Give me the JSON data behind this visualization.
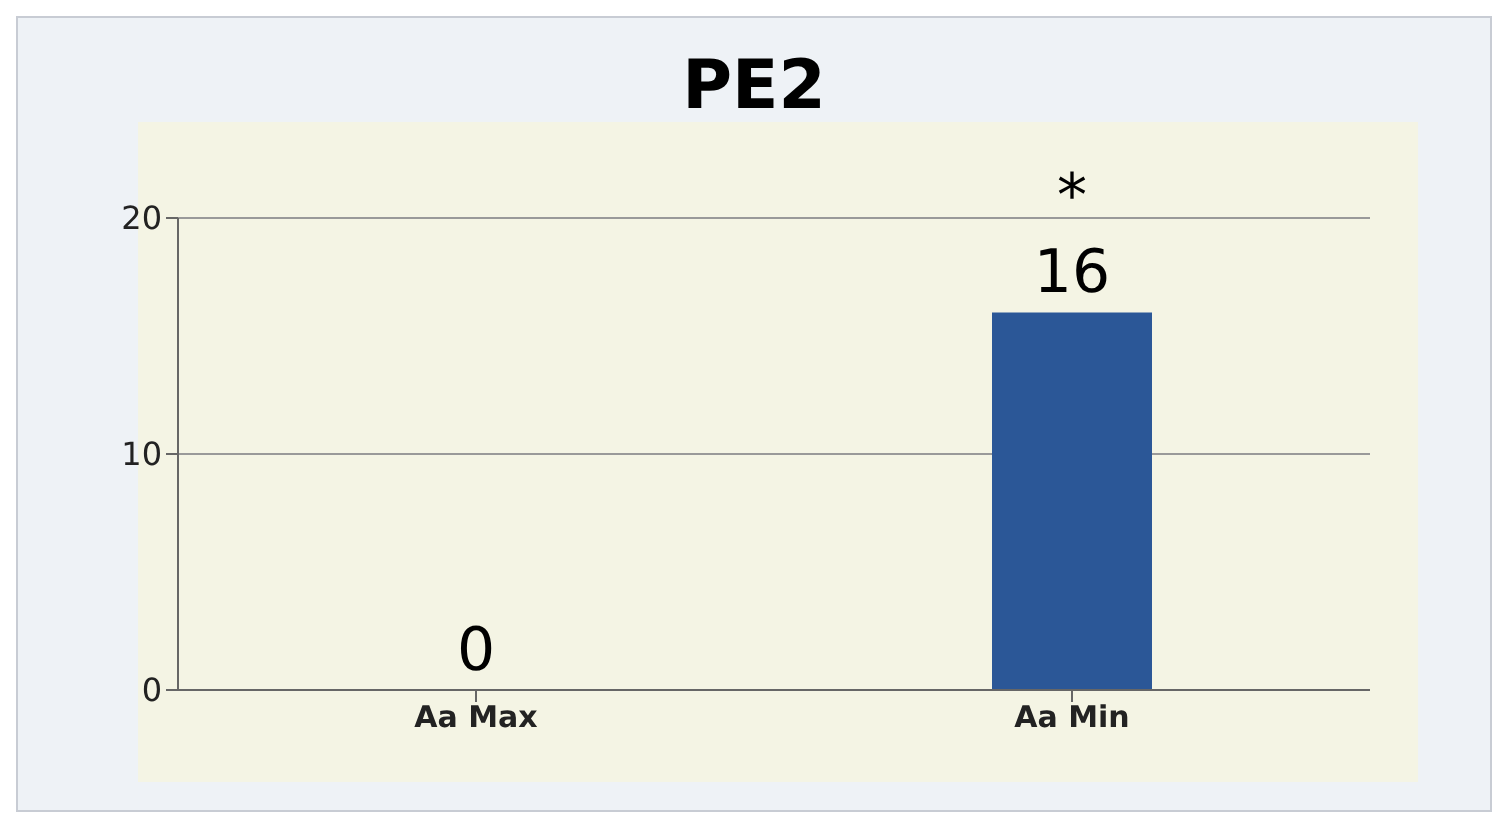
{
  "chart_data": {
    "type": "bar",
    "title": "PE2",
    "categories": [
      "Aa Max",
      "Aa Min"
    ],
    "values": [
      0,
      16
    ],
    "color": "#2b5797",
    "ylim": [
      0,
      20
    ],
    "yticks": [
      0,
      10,
      20
    ],
    "grid": "y",
    "data_labels": true,
    "annotations": [
      {
        "text": "*",
        "x": "Aa Min",
        "y": 16
      }
    ]
  }
}
